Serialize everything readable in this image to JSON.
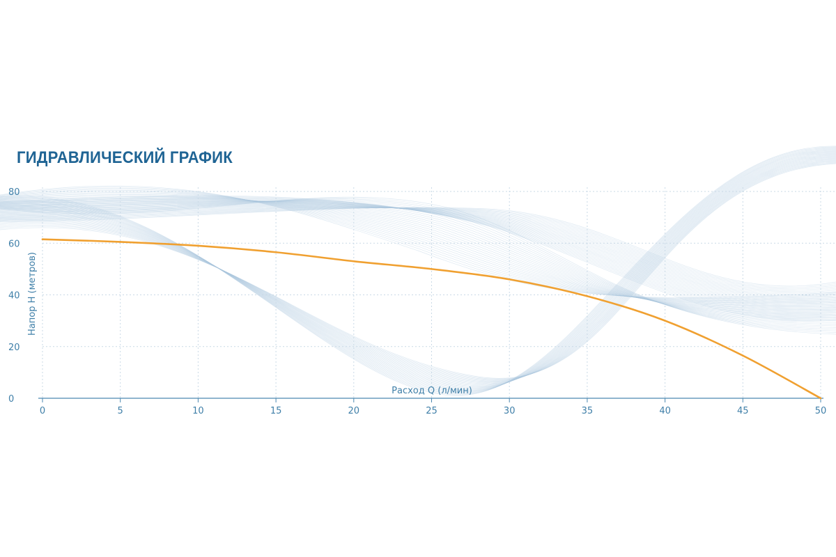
{
  "title": "ГИДРАВЛИЧЕСКИЙ ГРАФИК",
  "colors": {
    "title": "#1f6494",
    "axis_text": "#3f7fa8",
    "curve": "#f0a030",
    "grid": "#c9d9e6",
    "waves": "#a9c6dc",
    "axis_line": "#4a87b0"
  },
  "chart_data": {
    "type": "line",
    "title": "ГИДРАВЛИЧЕСКИЙ ГРАФИК",
    "xlabel": "Расход Q (л/мин)",
    "ylabel": "Напор H (метров)",
    "xlim": [
      0,
      50
    ],
    "ylim": [
      0,
      80
    ],
    "x_ticks": [
      "0",
      "5",
      "10",
      "15",
      "20",
      "25",
      "30",
      "35",
      "40",
      "45",
      "50"
    ],
    "y_ticks": [
      "0",
      "20",
      "40",
      "60",
      "80"
    ],
    "grid": true,
    "series": [
      {
        "x": [
          0,
          5,
          10,
          15,
          20,
          25,
          30,
          35,
          40,
          45,
          50
        ],
        "y": [
          61.5,
          60.5,
          59,
          56.5,
          53,
          50,
          46,
          39.5,
          30,
          16.5,
          0
        ]
      }
    ]
  }
}
